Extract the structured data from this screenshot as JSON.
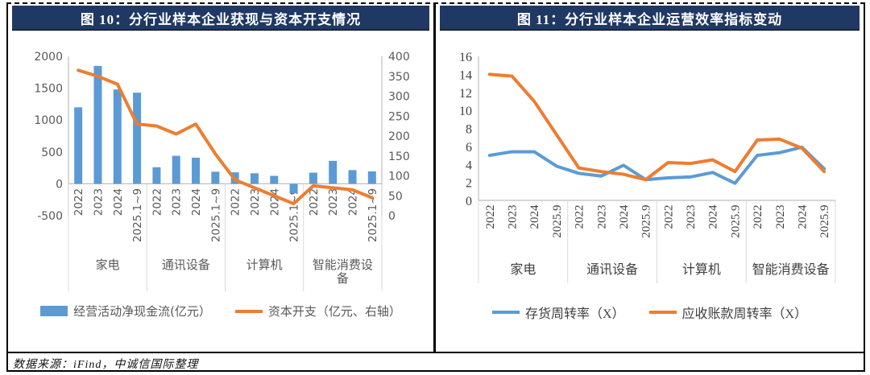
{
  "panel": {
    "left_title": "图 10：分行业样本企业获现与资本开支情况",
    "right_title": "图 11：分行业样本企业运营效率指标变动",
    "footer_source": "数据来源：iFind，中诚信国际整理"
  },
  "colors": {
    "header_navy": "#1F3864",
    "bar_blue": "#5B9BD5",
    "line_orange": "#ED7D31",
    "axis_text": "#595959",
    "axis_text_serif": "#404040",
    "axis_line": "#BFBFBF",
    "group_separator": "#D9D9D9"
  },
  "chart_data": [
    {
      "type": "bar+line",
      "title": "图 10：分行业样本企业获现与资本开支情况",
      "groups": [
        "家电",
        "通讯设备",
        "计算机",
        "智能消费设备"
      ],
      "categories_per_group": [
        "2022",
        "2023",
        "2024",
        "2025.1~9"
      ],
      "left_axis": {
        "min": -500,
        "max": 2000,
        "step": 500
      },
      "right_axis": {
        "min": 0,
        "max": 400,
        "step": 50
      },
      "grid": false,
      "legend_position": "bottom",
      "series": [
        {
          "name": "经营活动净现金流(亿元）",
          "type": "bar",
          "axis": "left",
          "color": "#5B9BD5",
          "values": [
            1200,
            1850,
            1480,
            1430,
            260,
            440,
            410,
            190,
            180,
            165,
            125,
            -150,
            175,
            360,
            215,
            195
          ]
        },
        {
          "name": "资本开支（亿元、右轴）",
          "type": "line",
          "axis": "right",
          "color": "#ED7D31",
          "values": [
            365,
            350,
            330,
            230,
            225,
            205,
            230,
            155,
            90,
            70,
            50,
            30,
            75,
            70,
            65,
            45
          ]
        }
      ]
    },
    {
      "type": "line",
      "title": "图 11：分行业样本企业运营效率指标变动",
      "groups": [
        "家电",
        "通讯设备",
        "计算机",
        "智能消费设备"
      ],
      "categories_per_group": [
        "2022",
        "2023",
        "2024",
        "2025.9"
      ],
      "y_axis": {
        "min": 0,
        "max": 16,
        "step": 2
      },
      "grid": false,
      "legend_position": "bottom",
      "series": [
        {
          "name": "存货周转率（X）",
          "type": "line",
          "color": "#5B9BD5",
          "values": [
            5.0,
            5.4,
            5.4,
            3.8,
            3.0,
            2.7,
            3.9,
            2.3,
            2.5,
            2.6,
            3.1,
            1.9,
            5.0,
            5.3,
            5.9,
            3.5
          ]
        },
        {
          "name": "应收账款周转率（X）",
          "type": "line",
          "color": "#ED7D31",
          "values": [
            14.0,
            13.8,
            11.0,
            7.3,
            3.6,
            3.2,
            2.9,
            2.3,
            4.2,
            4.1,
            4.5,
            3.2,
            6.7,
            6.8,
            5.8,
            3.2
          ]
        }
      ]
    }
  ]
}
